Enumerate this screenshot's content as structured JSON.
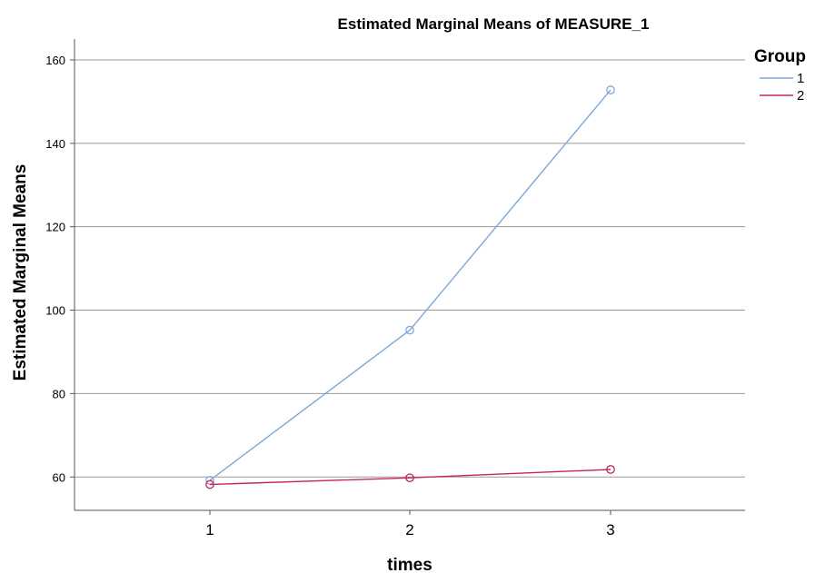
{
  "chart_data": {
    "type": "line",
    "title": "Estimated Marginal Means of MEASURE_1",
    "xlabel": "times",
    "ylabel": "Estimated Marginal Means",
    "categories": [
      "1",
      "2",
      "3"
    ],
    "ylim": [
      52,
      165
    ],
    "yticks": [
      60,
      80,
      100,
      120,
      140,
      160
    ],
    "grid": true,
    "legend": {
      "title": "Group",
      "position": "top-right"
    },
    "series": [
      {
        "name": "1",
        "values": [
          59.2,
          95.2,
          152.8
        ],
        "color": "#7ea6d6"
      },
      {
        "name": "2",
        "values": [
          58.2,
          59.8,
          61.8
        ],
        "color": "#c2285a"
      }
    ]
  }
}
